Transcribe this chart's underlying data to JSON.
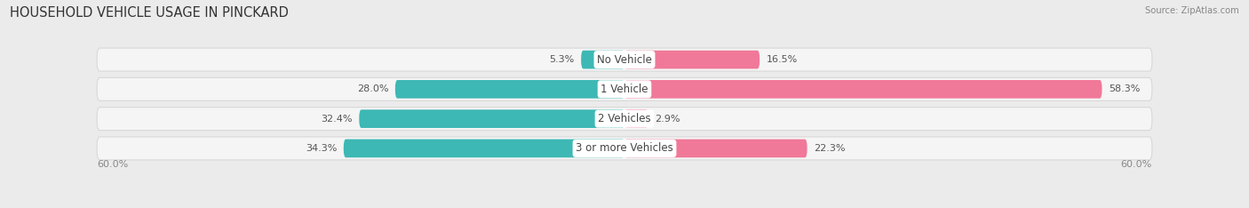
{
  "title": "HOUSEHOLD VEHICLE USAGE IN PINCKARD",
  "source": "Source: ZipAtlas.com",
  "categories": [
    "No Vehicle",
    "1 Vehicle",
    "2 Vehicles",
    "3 or more Vehicles"
  ],
  "owner_values": [
    5.3,
    28.0,
    32.4,
    34.3
  ],
  "renter_values": [
    16.5,
    58.3,
    2.9,
    22.3
  ],
  "owner_color": "#3db8b4",
  "renter_color": "#f07898",
  "axis_max": 60.0,
  "axis_label_left": "60.0%",
  "axis_label_right": "60.0%",
  "bg_color": "#ebebeb",
  "row_bg_color": "#f5f5f5",
  "row_border_color": "#d8d8d8",
  "title_fontsize": 10.5,
  "label_fontsize": 8.5,
  "value_fontsize": 8.0
}
